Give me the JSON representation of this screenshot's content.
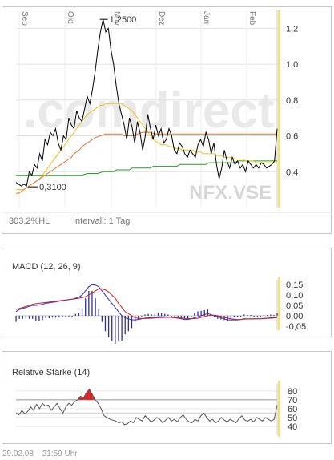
{
  "chart_data": [
    {
      "type": "line",
      "months": [
        "Sep",
        "Okt",
        "Nov",
        "Dez",
        "Jan",
        "Feb"
      ],
      "y_ticks": [
        "1,2",
        "1,0",
        "0,8",
        "0,6",
        "0,4"
      ],
      "ylim": [
        0.2,
        1.3
      ],
      "high_label": "1,2500",
      "low_label": "0,3100",
      "watermark": ".comdirect",
      "symbol": "NFX.VSE",
      "stats_left": "303,2%HL",
      "stats_right": "Intervall: 1 Tag",
      "series": [
        {
          "key": "price",
          "color": "#000000",
          "values": [
            0.34,
            0.33,
            0.32,
            0.33,
            0.32,
            0.4,
            0.38,
            0.44,
            0.42,
            0.5,
            0.46,
            0.58,
            0.55,
            0.62,
            0.6,
            0.64,
            0.56,
            0.52,
            0.6,
            0.58,
            0.7,
            0.66,
            0.64,
            0.74,
            0.7,
            0.68,
            0.75,
            0.82,
            0.78,
            0.86,
            0.96,
            1.08,
            1.18,
            1.25,
            1.18,
            1.2,
            1.08,
            1.0,
            0.88,
            0.78,
            0.72,
            0.66,
            0.58,
            0.7,
            0.65,
            0.56,
            0.68,
            0.62,
            0.52,
            0.6,
            0.72,
            0.64,
            0.58,
            0.66,
            0.6,
            0.64,
            0.56,
            0.58,
            0.64,
            0.6,
            0.52,
            0.5,
            0.56,
            0.54,
            0.5,
            0.48,
            0.52,
            0.5,
            0.48,
            0.55,
            0.58,
            0.54,
            0.62,
            0.58,
            0.5,
            0.56,
            0.44,
            0.36,
            0.42,
            0.52,
            0.46,
            0.42,
            0.48,
            0.44,
            0.46,
            0.42,
            0.44,
            0.4,
            0.46,
            0.44,
            0.42,
            0.44,
            0.42,
            0.45,
            0.44,
            0.42,
            0.43,
            0.44,
            0.46,
            0.64
          ]
        },
        {
          "key": "sma_slow",
          "color": "#e8742a",
          "values": [
            0.28,
            0.28,
            0.29,
            0.3,
            0.31,
            0.32,
            0.33,
            0.34,
            0.35,
            0.36,
            0.37,
            0.38,
            0.39,
            0.4,
            0.41,
            0.42,
            0.43,
            0.44,
            0.45,
            0.46,
            0.47,
            0.48,
            0.5,
            0.51,
            0.52,
            0.54,
            0.55,
            0.56,
            0.57,
            0.58,
            0.59,
            0.595,
            0.6,
            0.605,
            0.61,
            0.61,
            0.61,
            0.61,
            0.61,
            0.61,
            0.61,
            0.6,
            0.6,
            0.6,
            0.6,
            0.6,
            0.61,
            0.615,
            0.62,
            0.62,
            0.62,
            0.62,
            0.615,
            0.61,
            0.61,
            0.61,
            0.61,
            0.61,
            0.61,
            0.61,
            0.61,
            0.61,
            0.61,
            0.61,
            0.61,
            0.61,
            0.61,
            0.61,
            0.61,
            0.61,
            0.61,
            0.61,
            0.61,
            0.61,
            0.61,
            0.61,
            0.61,
            0.61,
            0.61,
            0.61,
            0.61,
            0.61,
            0.61,
            0.61,
            0.61,
            0.61,
            0.61,
            0.61,
            0.61,
            0.61,
            0.61,
            0.61,
            0.61,
            0.61,
            0.61,
            0.61,
            0.61,
            0.61,
            0.61,
            0.61
          ]
        },
        {
          "key": "sma_mid",
          "color": "#f0c020",
          "values": [
            0.3,
            0.3,
            0.3,
            0.3,
            0.31,
            0.32,
            0.33,
            0.34,
            0.35,
            0.36,
            0.38,
            0.4,
            0.42,
            0.44,
            0.46,
            0.48,
            0.5,
            0.52,
            0.54,
            0.56,
            0.58,
            0.6,
            0.62,
            0.64,
            0.66,
            0.68,
            0.7,
            0.72,
            0.73,
            0.74,
            0.75,
            0.76,
            0.77,
            0.77,
            0.78,
            0.78,
            0.78,
            0.78,
            0.78,
            0.78,
            0.78,
            0.77,
            0.76,
            0.75,
            0.74,
            0.72,
            0.7,
            0.68,
            0.66,
            0.64,
            0.62,
            0.6,
            0.58,
            0.57,
            0.56,
            0.55,
            0.55,
            0.55,
            0.54,
            0.54,
            0.53,
            0.53,
            0.53,
            0.52,
            0.52,
            0.52,
            0.52,
            0.52,
            0.51,
            0.51,
            0.51,
            0.5,
            0.5,
            0.5,
            0.5,
            0.5,
            0.49,
            0.49,
            0.49,
            0.48,
            0.48,
            0.48,
            0.48,
            0.47,
            0.47,
            0.47,
            0.47,
            0.46,
            0.46,
            0.46,
            0.46,
            0.45,
            0.45,
            0.45,
            0.45,
            0.45,
            0.45,
            0.45,
            0.45,
            0.45
          ]
        },
        {
          "key": "sma_long",
          "color": "#20a020",
          "values": [
            0.38,
            0.38,
            0.38,
            0.38,
            0.38,
            0.38,
            0.38,
            0.38,
            0.38,
            0.38,
            0.38,
            0.38,
            0.38,
            0.38,
            0.38,
            0.38,
            0.38,
            0.38,
            0.38,
            0.38,
            0.38,
            0.38,
            0.38,
            0.38,
            0.38,
            0.38,
            0.385,
            0.39,
            0.39,
            0.39,
            0.39,
            0.39,
            0.395,
            0.4,
            0.4,
            0.4,
            0.4,
            0.4,
            0.41,
            0.41,
            0.41,
            0.41,
            0.41,
            0.41,
            0.42,
            0.42,
            0.42,
            0.42,
            0.42,
            0.42,
            0.42,
            0.42,
            0.43,
            0.43,
            0.43,
            0.43,
            0.43,
            0.43,
            0.43,
            0.43,
            0.43,
            0.43,
            0.44,
            0.44,
            0.44,
            0.44,
            0.44,
            0.44,
            0.44,
            0.44,
            0.44,
            0.44,
            0.44,
            0.45,
            0.45,
            0.45,
            0.45,
            0.45,
            0.45,
            0.45,
            0.45,
            0.45,
            0.45,
            0.45,
            0.46,
            0.46,
            0.46,
            0.46,
            0.46,
            0.46,
            0.46,
            0.46,
            0.46,
            0.46,
            0.46,
            0.46,
            0.46,
            0.46,
            0.46,
            0.46
          ]
        }
      ]
    },
    {
      "type": "line",
      "title": "MACD (12, 26, 9)",
      "y_ticks": [
        "0,15",
        "0,10",
        "0,05",
        "0,00",
        "-0,05"
      ],
      "ylim": [
        -0.07,
        0.17
      ],
      "series": [
        {
          "key": "macd",
          "color": "#3030c0",
          "values": [
            0.02,
            0.03,
            0.035,
            0.04,
            0.045,
            0.05,
            0.05,
            0.052,
            0.055,
            0.06,
            0.062,
            0.065,
            0.067,
            0.07,
            0.072,
            0.075,
            0.078,
            0.08,
            0.085,
            0.09,
            0.1,
            0.12,
            0.14,
            0.15,
            0.148,
            0.14,
            0.12,
            0.1,
            0.08,
            0.06,
            0.04,
            0.02,
            0.0,
            -0.01,
            -0.015,
            -0.02,
            -0.02,
            -0.018,
            -0.015,
            -0.012,
            -0.01,
            -0.01,
            -0.008,
            -0.005,
            -0.005,
            -0.005,
            -0.006,
            -0.008,
            -0.01,
            -0.012,
            -0.015,
            -0.018,
            -0.018,
            -0.015,
            -0.01,
            -0.005,
            0.0,
            0.005,
            0.01,
            0.005,
            0.0,
            -0.005,
            -0.01,
            -0.015,
            -0.02,
            -0.02,
            -0.02,
            -0.02,
            -0.018,
            -0.015,
            -0.015,
            -0.015,
            -0.015,
            -0.015,
            -0.015,
            -0.013,
            -0.012,
            -0.01,
            -0.01,
            -0.005
          ]
        },
        {
          "key": "signal",
          "color": "#d02020",
          "values": [
            0.03,
            0.035,
            0.04,
            0.045,
            0.05,
            0.055,
            0.058,
            0.06,
            0.062,
            0.064,
            0.066,
            0.068,
            0.07,
            0.072,
            0.074,
            0.076,
            0.078,
            0.08,
            0.082,
            0.085,
            0.088,
            0.092,
            0.1,
            0.11,
            0.12,
            0.13,
            0.13,
            0.125,
            0.115,
            0.1,
            0.085,
            0.06,
            0.04,
            0.02,
            0.01,
            0.0,
            -0.01,
            -0.012,
            -0.014,
            -0.014,
            -0.013,
            -0.012,
            -0.011,
            -0.01,
            -0.009,
            -0.008,
            -0.008,
            -0.008,
            -0.009,
            -0.01,
            -0.011,
            -0.013,
            -0.014,
            -0.015,
            -0.014,
            -0.012,
            -0.008,
            -0.004,
            0.0,
            0.002,
            0.002,
            0.0,
            -0.004,
            -0.008,
            -0.012,
            -0.015,
            -0.017,
            -0.018,
            -0.018,
            -0.017,
            -0.016,
            -0.016,
            -0.015,
            -0.015,
            -0.015,
            -0.014,
            -0.013,
            -0.012,
            -0.011,
            -0.009
          ]
        }
      ]
    },
    {
      "type": "line",
      "title": "Relative Stärke (14)",
      "y_ticks": [
        "80",
        "70",
        "60",
        "50",
        "40"
      ],
      "ylim": [
        30,
        88
      ],
      "bands": [
        70,
        55
      ],
      "values": [
        55,
        53,
        58,
        54,
        57,
        62,
        58,
        65,
        60,
        66,
        63,
        64,
        58,
        62,
        66,
        60,
        55,
        62,
        66,
        64,
        68,
        70,
        74,
        72,
        78,
        82,
        76,
        70,
        66,
        60,
        52,
        50,
        48,
        47,
        46,
        44,
        45,
        42,
        43,
        46,
        44,
        50,
        48,
        46,
        52,
        49,
        45,
        47,
        50,
        48,
        44,
        47,
        50,
        46,
        48,
        45,
        50,
        53,
        48,
        45,
        44,
        48,
        46,
        52,
        55,
        50,
        46,
        48,
        44,
        46,
        50,
        47,
        45,
        48,
        46,
        44,
        49,
        52,
        47,
        46,
        48,
        45,
        50,
        48,
        46,
        50,
        48,
        46,
        48,
        64
      ]
    }
  ],
  "footer": {
    "date": "29.02.08",
    "time": "21:59 Uhr"
  }
}
